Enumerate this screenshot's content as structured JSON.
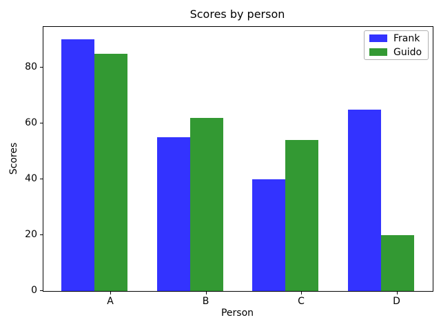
{
  "chart_data": {
    "type": "bar",
    "title": "Scores by person",
    "xlabel": "Person",
    "ylabel": "Scores",
    "categories": [
      "A",
      "B",
      "C",
      "D"
    ],
    "series": [
      {
        "name": "Frank",
        "color": "#3333ff",
        "values": [
          90,
          55,
          40,
          65
        ]
      },
      {
        "name": "Guido",
        "color": "#339933",
        "values": [
          85,
          62,
          54,
          20
        ]
      }
    ],
    "ylim": [
      0,
      94.5
    ],
    "yticks": [
      0,
      20,
      40,
      60,
      80
    ],
    "grid": false,
    "legend_position": "upper right",
    "background_color": "#ffffff",
    "axis_color": "#000000"
  }
}
